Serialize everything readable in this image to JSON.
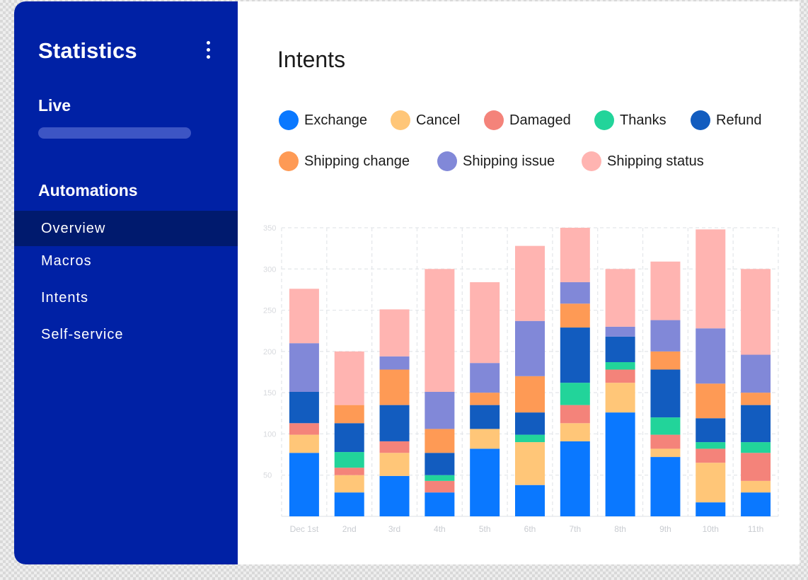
{
  "sidebar": {
    "title": "Statistics",
    "live_label": "Live",
    "automations_label": "Automations",
    "items": [
      {
        "label": "Overview",
        "active": true
      },
      {
        "label": "Macros",
        "active": false
      },
      {
        "label": "Intents",
        "active": false
      },
      {
        "label": "Self-service",
        "active": false
      }
    ],
    "menu_icon": "kebab-menu-icon"
  },
  "colors": {
    "sidebar_bg": "#0021a5",
    "active_item_bg": "#001a6e"
  },
  "main": {
    "title": "Intents"
  },
  "chart_data": {
    "type": "bar",
    "stacked": true,
    "grid": true,
    "ylim": [
      0,
      350
    ],
    "yticks": [
      50,
      100,
      150,
      200,
      250,
      300,
      350
    ],
    "categories": [
      "Dec 1st",
      "2nd",
      "3rd",
      "4th",
      "5th",
      "6th",
      "7th",
      "8th",
      "9th",
      "10th",
      "11th"
    ],
    "series": [
      {
        "name": "Exchange",
        "color": "#0a78ff",
        "values": [
          77,
          29,
          49,
          29,
          82,
          38,
          91,
          126,
          72,
          17,
          29
        ]
      },
      {
        "name": "Cancel",
        "color": "#ffc678",
        "values": [
          22,
          21,
          28,
          0,
          24,
          52,
          22,
          36,
          10,
          48,
          14
        ]
      },
      {
        "name": "Damaged",
        "color": "#f4837a",
        "values": [
          14,
          9,
          14,
          14,
          0,
          0,
          22,
          16,
          17,
          17,
          34
        ]
      },
      {
        "name": "Thanks",
        "color": "#22d49a",
        "values": [
          0,
          19,
          0,
          7,
          0,
          9,
          27,
          9,
          21,
          8,
          13
        ]
      },
      {
        "name": "Refund",
        "color": "#125cbf",
        "values": [
          38,
          35,
          44,
          27,
          29,
          27,
          67,
          31,
          58,
          29,
          45
        ]
      },
      {
        "name": "Shipping change",
        "color": "#fe9a55",
        "values": [
          0,
          22,
          43,
          29,
          15,
          44,
          29,
          0,
          22,
          42,
          15
        ]
      },
      {
        "name": "Shipping issue",
        "color": "#8188d8",
        "values": [
          59,
          0,
          16,
          45,
          36,
          67,
          26,
          12,
          38,
          67,
          46
        ]
      },
      {
        "name": "Shipping status",
        "color": "#ffb4b1",
        "values": [
          66,
          65,
          57,
          149,
          98,
          91,
          66,
          70,
          71,
          120,
          104
        ]
      }
    ]
  }
}
